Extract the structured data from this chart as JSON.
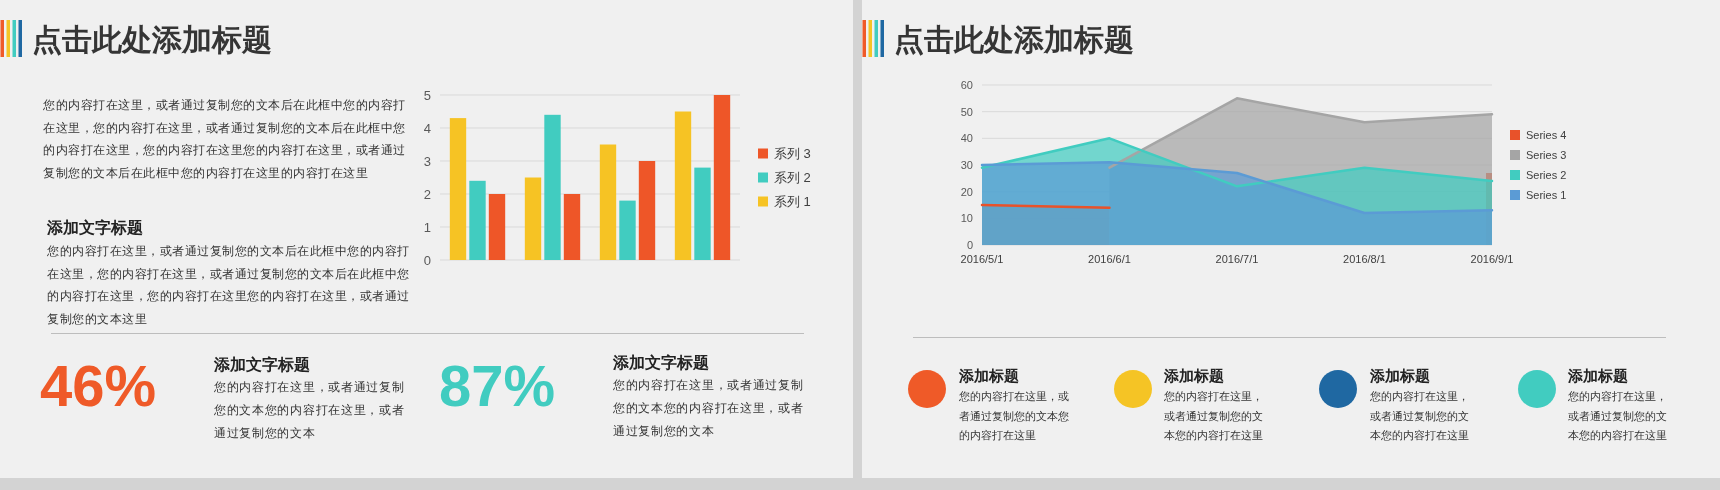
{
  "chart_data": [
    {
      "type": "other",
      "title": "点击此处添加标题",
      "annotations": [
        "您的内容打在这里，或者通过复制您的文本后在此框中您的内容打在这里，您的内容打在这里，或者通过复制您的文本后在此框中您的内容打在这里，您的内容打在这里您的内容打在这里，或者通过复制您的文本后在此框中您的内容打在这里的内容打在这里",
        "添加文字标题",
        "您的内容打在这里，或者通过复制您的文本后在此框中您的内容打在这里，您的内容打在这里，或者通过复制您的文本后在此框中您的内容打在这里，您的内容打在这里您的内容打在这里，或者通过复制您的文本这里"
      ]
    },
    {
      "type": "bar",
      "categories": [
        null,
        null,
        null,
        null
      ],
      "series": [
        {
          "name": "系列 1",
          "color": "#f6c324",
          "values": [
            4.3,
            2.5,
            3.5,
            4.5
          ]
        },
        {
          "name": "系列 2",
          "color": "#41ccc0",
          "values": [
            2.4,
            4.4,
            1.8,
            2.8
          ]
        },
        {
          "name": "系列 3",
          "color": "#ee5628",
          "values": [
            2,
            2,
            3,
            5
          ]
        }
      ],
      "ylim": [
        0,
        5
      ],
      "yticks": [
        0,
        1,
        2,
        3,
        4,
        5
      ],
      "grid": "y",
      "legend": "right"
    },
    {
      "type": "other",
      "annotations": [
        "46%",
        "添加文字标题",
        "您的内容打在这里，或者通过复制您的文本您的内容打在这里，或者通过复制您的文本"
      ]
    },
    {
      "type": "other",
      "annotations": [
        "87%",
        "添加文字标题",
        "您的内容打在这里，或者通过复制您的文本您的内容打在这里，或者通过复制您的文本"
      ]
    },
    {
      "type": "area",
      "title": "点击此处添加标题",
      "categories": [
        "2016/5/1",
        "2016/6/1",
        "2016/7/1",
        "2016/8/1",
        "2016/9/1"
      ],
      "series": [
        {
          "name": "Series 1",
          "color": "#5b9bd5",
          "values": [
            30,
            31,
            27,
            12,
            13
          ]
        },
        {
          "name": "Series 2",
          "color": "#41ccc0",
          "values": [
            29,
            40,
            22,
            29,
            24
          ]
        },
        {
          "name": "Series 3",
          "color": "#a5a5a5",
          "values": [
            null,
            29,
            55,
            46,
            49
          ]
        },
        {
          "name": "Series 4",
          "color": "#e8522a",
          "values": [
            15,
            14,
            null,
            null,
            27
          ]
        }
      ],
      "ylim": [
        0,
        60
      ],
      "yticks": [
        0,
        10,
        20,
        30,
        40,
        50,
        60
      ],
      "grid": "y",
      "legend": "right"
    },
    {
      "type": "other",
      "annotations": [
        "添加标题",
        "您的内容打在这里，或者通过复制您的文本您的内容打在这里"
      ]
    },
    {
      "type": "other",
      "annotations": [
        "添加标题",
        "您的内容打在这里，或者通过复制您的文本您的内容打在这里"
      ]
    },
    {
      "type": "other",
      "annotations": [
        "添加标题",
        "您的内容打在这里，或者通过复制您的文本您的内容打在这里"
      ]
    },
    {
      "type": "other",
      "annotations": [
        "添加标题",
        "您的内容打在这里，或者通过复制您的文本您的内容打在这里"
      ]
    }
  ]
}
